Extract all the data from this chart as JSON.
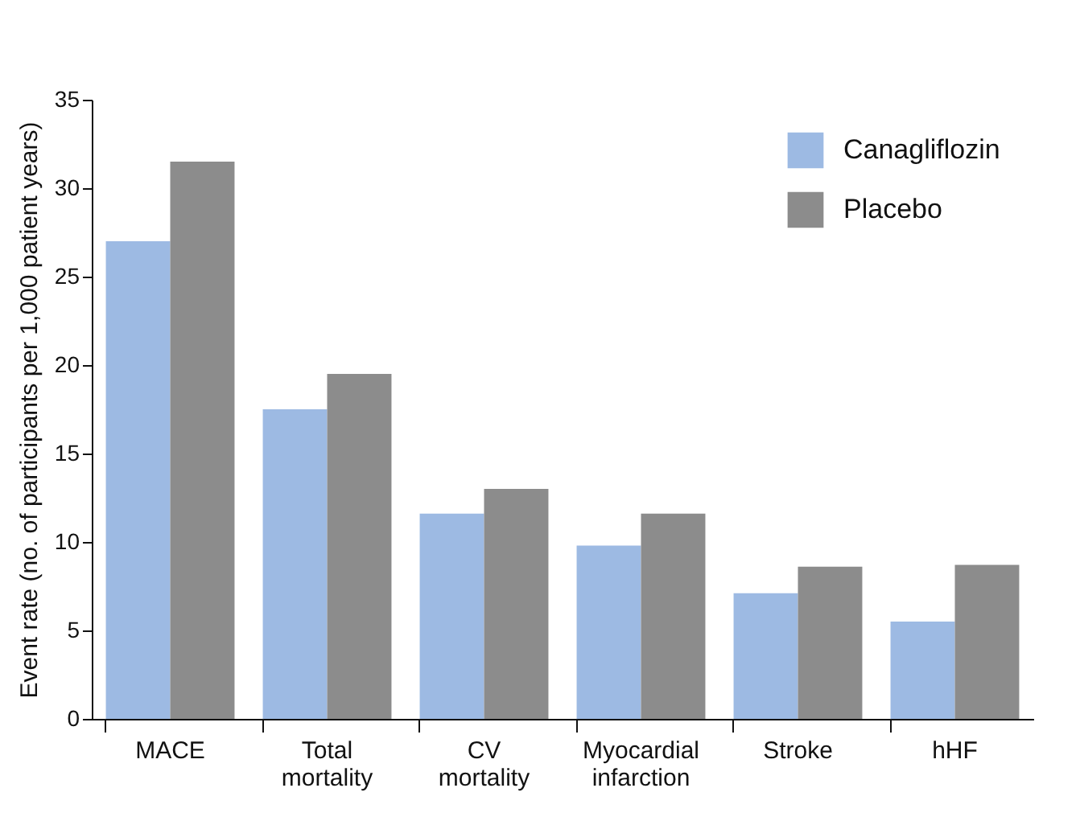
{
  "chart_data": {
    "type": "bar",
    "ylabel": "Event rate (no. of participants per 1,000 patient years)",
    "categories": [
      "MACE",
      "Total mortality",
      "CV mortality",
      "Myocardial infarction",
      "Stroke",
      "hHF"
    ],
    "series": [
      {
        "name": "Canagliflozin",
        "color": "#9dbae3",
        "values": [
          27.0,
          17.5,
          11.6,
          9.8,
          7.1,
          5.5
        ]
      },
      {
        "name": "Placebo",
        "color": "#8c8c8c",
        "values": [
          31.5,
          19.5,
          13.0,
          11.6,
          8.6,
          8.7
        ]
      }
    ],
    "ylim": [
      0,
      35
    ],
    "yticks": [
      0,
      5,
      10,
      15,
      20,
      25,
      30,
      35
    ],
    "grid": false,
    "legend": "top right"
  }
}
